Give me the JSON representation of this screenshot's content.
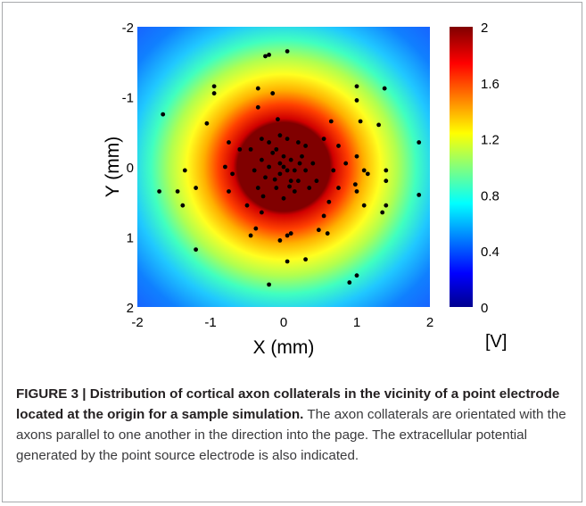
{
  "figure": {
    "caption_label": "FIGURE 3 | ",
    "caption_title": "Distribution of cortical axon collaterals in the vicinity of a point electrode located at the origin for a sample simulation.",
    "caption_body": " The axon collaterals are orientated with the axons parallel to one another in the direction into the page. The extracellular potential generated by the point source electrode is also indicated."
  },
  "chart_data": {
    "type": "heatmap",
    "xlabel": "X (mm)",
    "ylabel": "Y (mm)",
    "xlim": [
      -2,
      2
    ],
    "ylim": [
      2,
      -2
    ],
    "y_axis_inverted": true,
    "x_ticks": [
      "-2",
      "-1",
      "0",
      "1",
      "2"
    ],
    "y_ticks": [
      "-2",
      "-1",
      "0",
      "1",
      "2"
    ],
    "colorbar": {
      "label": "[V]",
      "range": [
        0,
        2
      ],
      "ticks": [
        "2",
        "1.6",
        "1.2",
        "0.8",
        "0.4",
        "0"
      ],
      "colormap": "jet",
      "colors": [
        "#00008f",
        "#0000ff",
        "#00ffff",
        "#ffff00",
        "#ff0000",
        "#800000"
      ]
    },
    "heatmap": {
      "description": "radially decaying potential centered at origin",
      "center": [
        0,
        0
      ],
      "saturated_radius_mm": 0.6,
      "max_value": 2
    },
    "grid": false,
    "series": [
      {
        "marker_color": "#000000",
        "points": [
          [
            0.05,
            -1.65
          ],
          [
            -0.2,
            -1.6
          ],
          [
            -0.25,
            -1.58
          ],
          [
            -0.95,
            -1.15
          ],
          [
            -0.95,
            -1.05
          ],
          [
            -0.35,
            -1.12
          ],
          [
            -0.15,
            -1.05
          ],
          [
            1.0,
            -1.15
          ],
          [
            1.38,
            -1.12
          ],
          [
            1.0,
            -0.95
          ],
          [
            1.05,
            -0.65
          ],
          [
            1.3,
            -0.6
          ],
          [
            -1.65,
            -0.75
          ],
          [
            -1.05,
            -0.62
          ],
          [
            -0.35,
            -0.85
          ],
          [
            -0.08,
            -0.68
          ],
          [
            0.65,
            -0.65
          ],
          [
            1.85,
            -0.35
          ],
          [
            0.55,
            -0.4
          ],
          [
            0.75,
            -0.3
          ],
          [
            -0.75,
            -0.35
          ],
          [
            -0.6,
            -0.25
          ],
          [
            -0.8,
            0.0
          ],
          [
            -0.7,
            0.1
          ],
          [
            -1.35,
            0.05
          ],
          [
            -1.2,
            0.3
          ],
          [
            -1.45,
            0.35
          ],
          [
            -1.38,
            0.55
          ],
          [
            -1.7,
            0.35
          ],
          [
            -0.75,
            0.35
          ],
          [
            -0.5,
            0.55
          ],
          [
            -0.3,
            0.65
          ],
          [
            -0.38,
            0.88
          ],
          [
            -0.45,
            0.98
          ],
          [
            0.05,
            0.98
          ],
          [
            -0.05,
            1.05
          ],
          [
            0.1,
            0.95
          ],
          [
            0.6,
            0.95
          ],
          [
            0.48,
            0.9
          ],
          [
            0.55,
            0.7
          ],
          [
            0.62,
            0.5
          ],
          [
            0.75,
            0.3
          ],
          [
            0.68,
            0.05
          ],
          [
            0.85,
            -0.05
          ],
          [
            1.0,
            -0.15
          ],
          [
            1.15,
            0.1
          ],
          [
            1.1,
            0.05
          ],
          [
            1.0,
            0.35
          ],
          [
            0.98,
            0.25
          ],
          [
            1.1,
            0.55
          ],
          [
            1.35,
            0.65
          ],
          [
            1.4,
            0.2
          ],
          [
            1.4,
            0.05
          ],
          [
            1.85,
            0.4
          ],
          [
            1.4,
            0.55
          ],
          [
            -1.2,
            1.18
          ],
          [
            0.05,
            1.35
          ],
          [
            0.3,
            1.32
          ],
          [
            1.0,
            1.55
          ],
          [
            0.9,
            1.65
          ],
          [
            -0.2,
            1.68
          ],
          [
            0.0,
            0.0
          ],
          [
            0.05,
            0.05
          ],
          [
            -0.05,
            0.1
          ],
          [
            0.1,
            -0.1
          ],
          [
            -0.15,
            -0.2
          ],
          [
            0.2,
            0.2
          ],
          [
            -0.25,
            0.15
          ],
          [
            0.25,
            -0.15
          ],
          [
            -0.1,
            0.3
          ],
          [
            0.15,
            0.35
          ],
          [
            -0.3,
            -0.1
          ],
          [
            0.3,
            0.05
          ],
          [
            -0.2,
            -0.35
          ],
          [
            0.05,
            -0.4
          ],
          [
            -0.4,
            0.05
          ],
          [
            0.4,
            -0.05
          ],
          [
            0.35,
            0.3
          ],
          [
            -0.35,
            0.3
          ],
          [
            -0.1,
            -0.25
          ],
          [
            0.1,
            0.2
          ],
          [
            -0.45,
            -0.25
          ],
          [
            0.45,
            0.2
          ],
          [
            0.0,
            0.45
          ],
          [
            0.2,
            -0.35
          ],
          [
            -0.05,
            -0.45
          ],
          [
            -0.3,
            -0.4
          ],
          [
            0.3,
            -0.3
          ],
          [
            0.15,
            0.05
          ],
          [
            -0.2,
            0.0
          ],
          [
            0.0,
            -0.15
          ],
          [
            -0.12,
            0.18
          ],
          [
            0.22,
            -0.05
          ],
          [
            -0.05,
            -0.05
          ],
          [
            0.08,
            0.28
          ],
          [
            -0.28,
            0.42
          ]
        ]
      }
    ]
  }
}
